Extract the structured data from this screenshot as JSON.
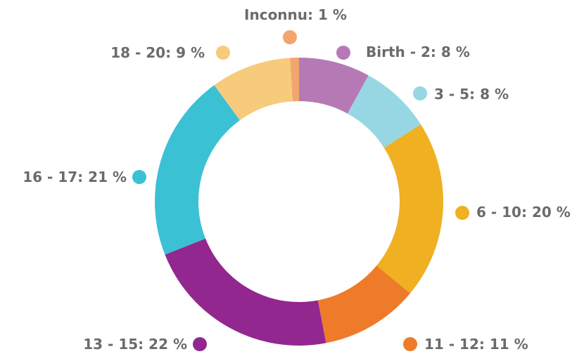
{
  "chart_data": {
    "type": "donut",
    "categories": [
      "Birth - 2:",
      "3 - 5:",
      "6 - 10:",
      "11 - 12:",
      "13 - 15:",
      "16 - 17:",
      "18 - 20:",
      "Inconnu:"
    ],
    "values": [
      8,
      8,
      20,
      11,
      22,
      21,
      9,
      1
    ],
    "value_labels": [
      "8 %",
      "8 %",
      "20 %",
      "11 %",
      "22 %",
      "21 %",
      "9 %",
      "1 %"
    ],
    "colors": [
      "#b57ab5",
      "#97d7e3",
      "#efb022",
      "#ee7b29",
      "#92278f",
      "#3bc1d4",
      "#f7cb7c",
      "#f3a56e"
    ]
  }
}
